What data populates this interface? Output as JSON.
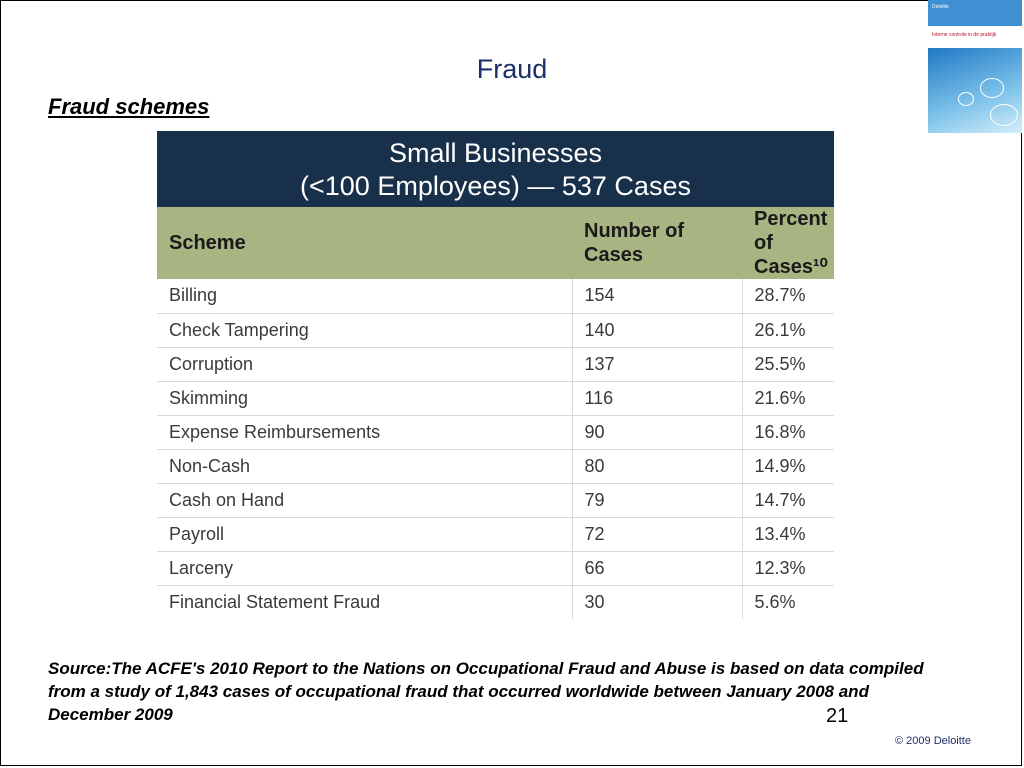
{
  "slide": {
    "title": "Fraud",
    "subtitle": "Fraud schemes",
    "thumbnail": {
      "banner_text": "Deloitte",
      "caption": "Interne controle in de praktijk"
    },
    "table": {
      "header_line1": "Small Businesses",
      "header_line2": "(<100 Employees) — 537 Cases",
      "columns": {
        "scheme": "Scheme",
        "number": "Number of Cases",
        "percent": "Percent of Cases¹⁰"
      },
      "rows": [
        {
          "scheme": "Billing",
          "number": "154",
          "percent": "28.7%"
        },
        {
          "scheme": "Check Tampering",
          "number": "140",
          "percent": "26.1%"
        },
        {
          "scheme": "Corruption",
          "number": "137",
          "percent": "25.5%"
        },
        {
          "scheme": "Skimming",
          "number": "116",
          "percent": "21.6%"
        },
        {
          "scheme": "Expense Reimbursements",
          "number": "90",
          "percent": "16.8%"
        },
        {
          "scheme": "Non-Cash",
          "number": "80",
          "percent": "14.9%"
        },
        {
          "scheme": "Cash on Hand",
          "number": "79",
          "percent": "14.7%"
        },
        {
          "scheme": "Payroll",
          "number": "72",
          "percent": "13.4%"
        },
        {
          "scheme": "Larceny",
          "number": "66",
          "percent": "12.3%"
        },
        {
          "scheme": "Financial Statement Fraud",
          "number": "30",
          "percent": "5.6%"
        }
      ]
    },
    "source": "Source:The ACFE's 2010 Report to the Nations on Occupational Fraud and Abuse is based on data compiled from a study of 1,843 cases of occupational fraud that occurred worldwide between January 2008 and December 2009",
    "page_number": "21",
    "copyright": "© 2009 Deloitte"
  }
}
